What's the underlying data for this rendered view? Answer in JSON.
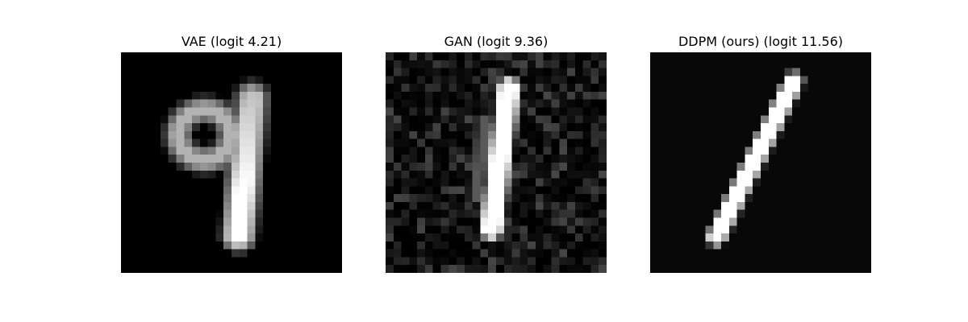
{
  "panels": [
    {
      "title": "VAE (logit 4.21)",
      "image": "blurry handwritten digit nine, grayscale 28x28 sample",
      "style": "vae"
    },
    {
      "title": "GAN (logit 9.36)",
      "image": "noisy handwritten digit one, grayscale 28x28 sample",
      "style": "gan"
    },
    {
      "title": "DDPM (ours) (logit 11.56)",
      "image": "clean slanted handwritten digit one, grayscale 28x28 sample",
      "style": "ddpm"
    }
  ]
}
